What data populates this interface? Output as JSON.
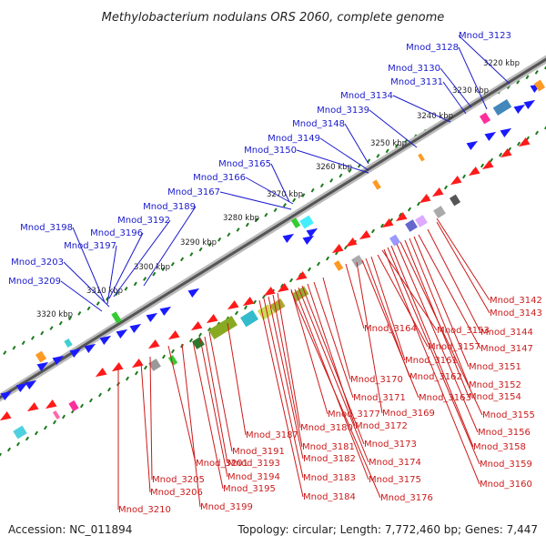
{
  "title": "Methylobacterium nodulans ORS 2060, complete genome",
  "footer": {
    "accession": "Accession: NC_011894",
    "summary": "Topology: circular; Length: 7,772,460 bp; Genes: 7,447"
  },
  "colors": {
    "forward_gene": "#1a1aff",
    "reverse_gene": "#ff1a1a",
    "label_forward": "#1a1acc",
    "label_reverse": "#cc1a1a",
    "tick": "#1a7a1a",
    "backbone_dark": "#555555",
    "backbone_light": "#bbbbbb"
  },
  "scale_ticks": [
    "3220 kbp",
    "3230 kbp",
    "3240 kbp",
    "3250 kbp",
    "3260 kbp",
    "3270 kbp",
    "3280 kbp",
    "3290 kbp",
    "3300 kbp",
    "3310 kbp",
    "3320 kbp"
  ],
  "top_labels": [
    "Mnod_3123",
    "Mnod_3128",
    "Mnod_3130",
    "Mnod_3131",
    "Mnod_3134",
    "Mnod_3139",
    "Mnod_3148",
    "Mnod_3149",
    "Mnod_3150",
    "Mnod_3165",
    "Mnod_3166",
    "Mnod_3167",
    "Mnod_3189",
    "Mnod_3192",
    "Mnod_3196",
    "Mnod_3198",
    "Mnod_3197",
    "Mnod_3203",
    "Mnod_3209"
  ],
  "bottom_labels": [
    "Mnod_3142",
    "Mnod_3143",
    "Mnod_3144",
    "Mnod_3164",
    "Mnod_3153",
    "Mnod_3147",
    "Mnod_3157",
    "Mnod_3161",
    "Mnod_3151",
    "Mnod_3170",
    "Mnod_3162",
    "Mnod_3152",
    "Mnod_3163",
    "Mnod_3154",
    "Mnod_3171",
    "Mnod_3177",
    "Mnod_3169",
    "Mnod_3155",
    "Mnod_3180",
    "Mnod_3172",
    "Mnod_3156",
    "Mnod_3187",
    "Mnod_3173",
    "Mnod_3158",
    "Mnod_3181",
    "Mnod_3191",
    "Mnod_3174",
    "Mnod_3182",
    "Mnod_3201",
    "Mnod_3193",
    "Mnod_3159",
    "Mnod_3194",
    "Mnod_3175",
    "Mnod_3183",
    "Mnod_3160",
    "Mnod_3205",
    "Mnod_3195",
    "Mnod_3176",
    "Mnod_3184",
    "Mnod_3206",
    "Mnod_3199",
    "Mnod_3210"
  ]
}
